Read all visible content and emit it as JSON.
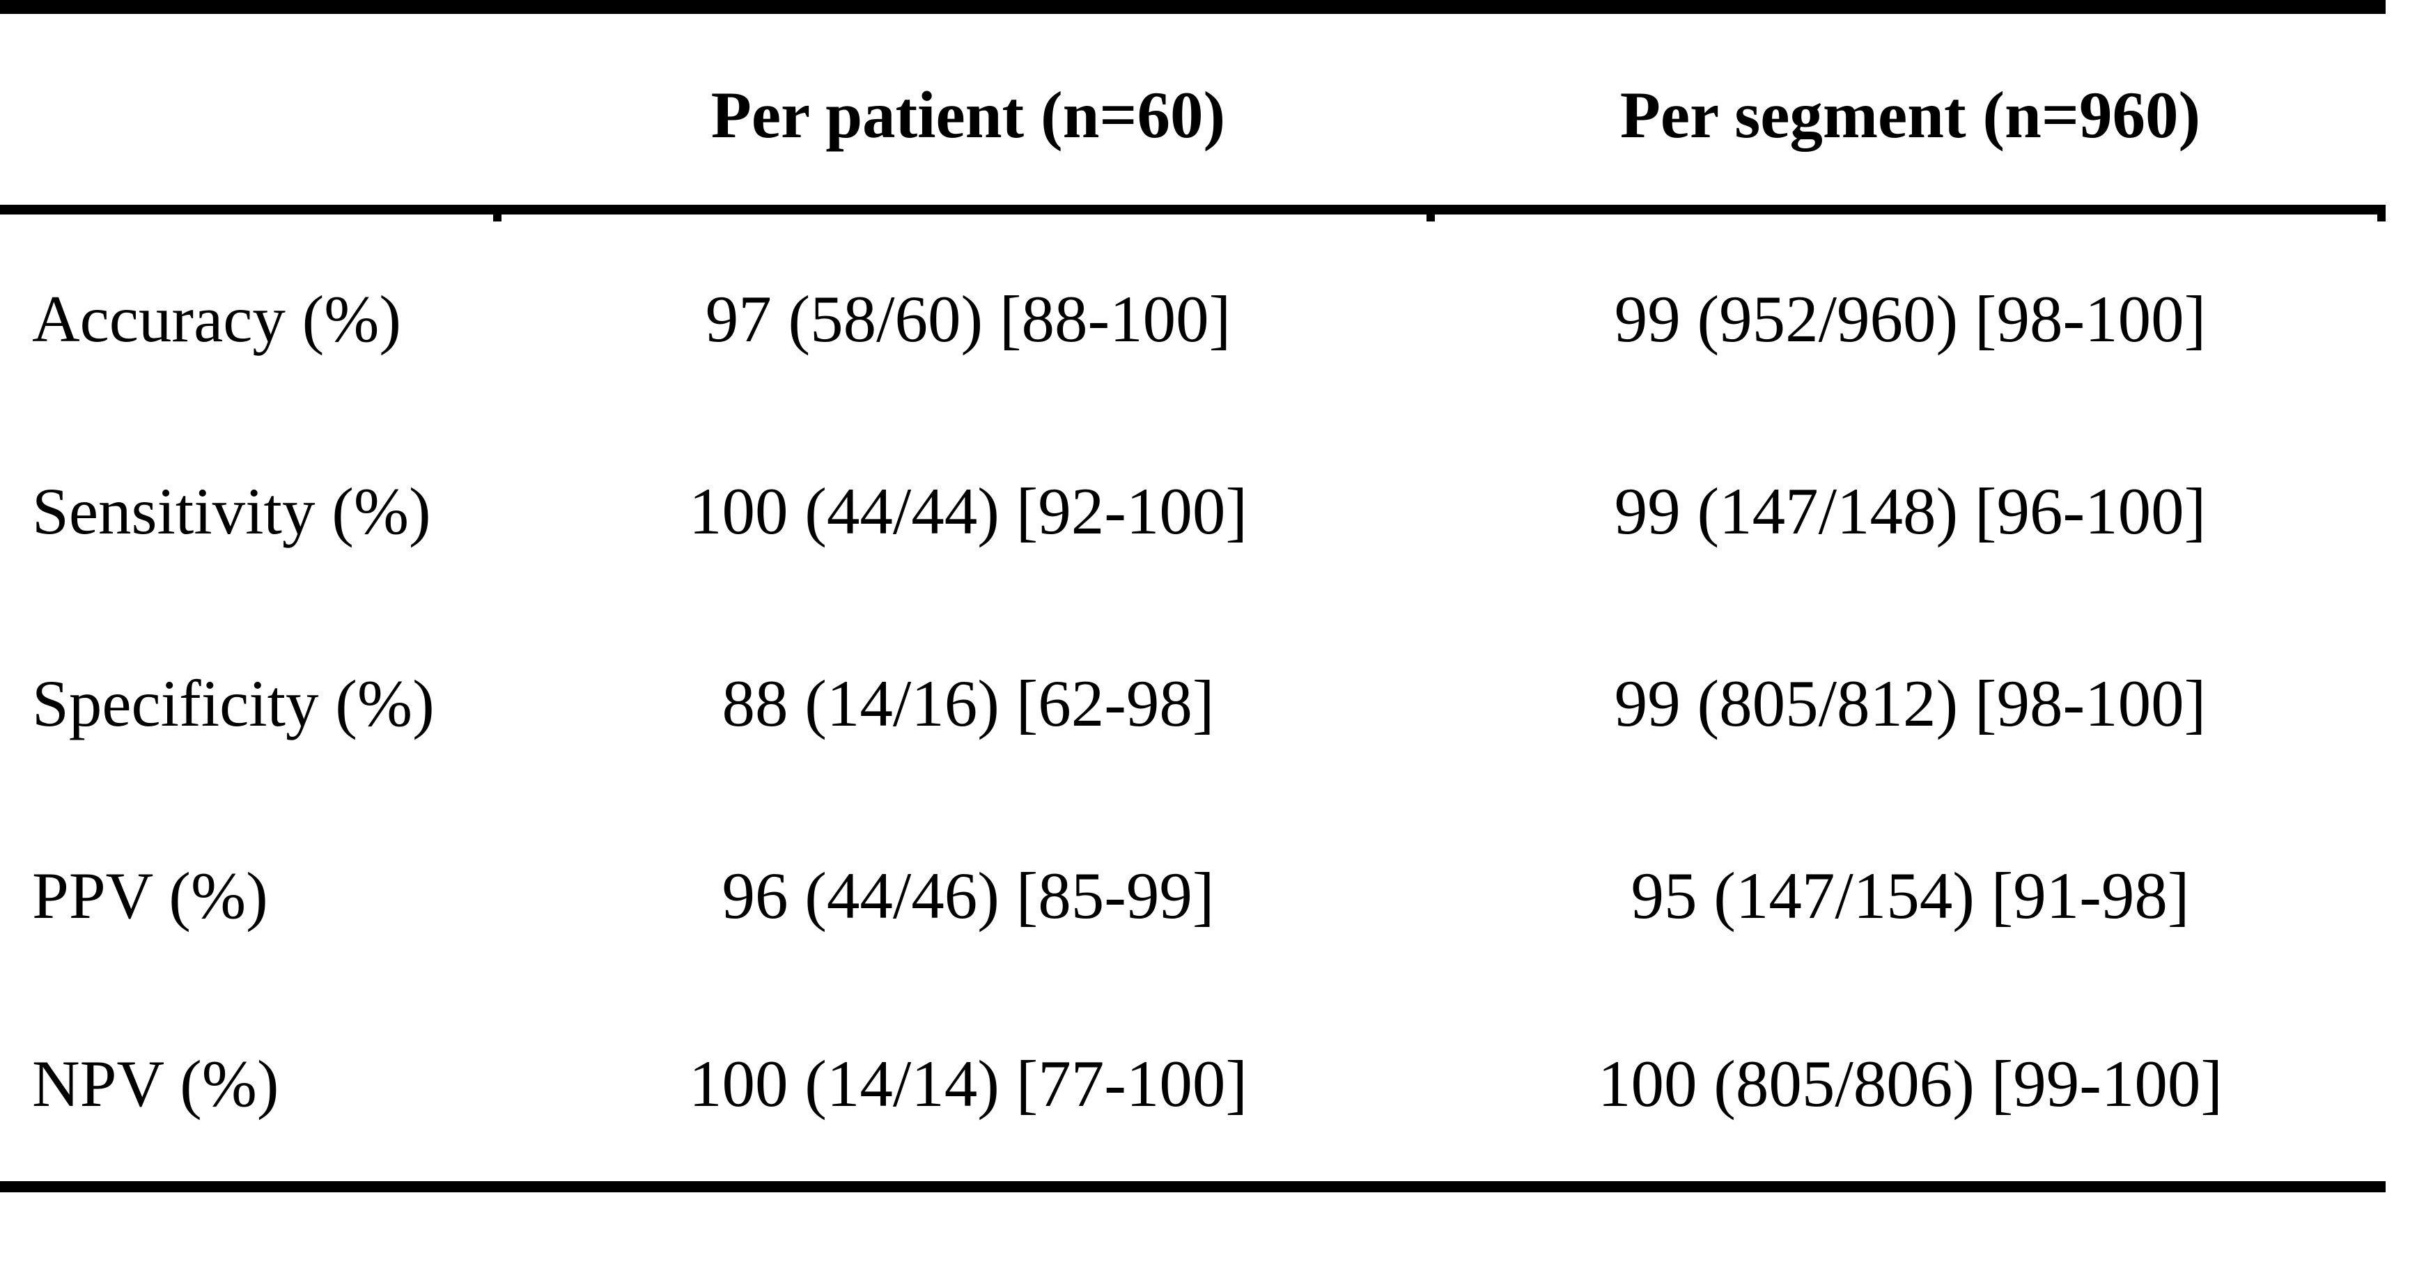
{
  "table": {
    "headers": {
      "label": "",
      "per_patient": "Per patient (n=60)",
      "per_segment": "Per segment (n=960)"
    },
    "rows": [
      {
        "label": "Accuracy (%)",
        "per_patient": "97 (58/60) [88-100]",
        "per_segment": "99 (952/960) [98-100]"
      },
      {
        "label": "Sensitivity (%)",
        "per_patient": "100 (44/44) [92-100]",
        "per_segment": "99 (147/148) [96-100]"
      },
      {
        "label": "Specificity (%)",
        "per_patient": "88 (14/16) [62-98]",
        "per_segment": "99 (805/812) [98-100]"
      },
      {
        "label": "PPV (%)",
        "per_patient": "96 (44/46) [85-99]",
        "per_segment": "95 (147/154) [91-98]"
      },
      {
        "label": "NPV (%)",
        "per_patient": "100 (14/14) [77-100]",
        "per_segment": "100 (805/806) [99-100]"
      }
    ]
  }
}
